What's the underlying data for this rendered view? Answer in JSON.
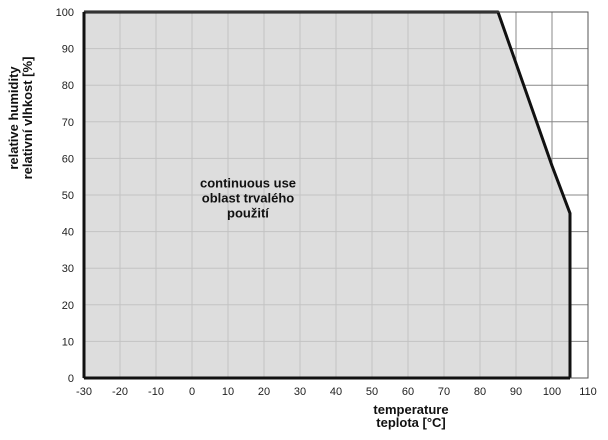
{
  "chart_data": {
    "type": "area",
    "title": "",
    "xlabel": [
      "temperature",
      "teplota [°C]"
    ],
    "ylabel": [
      "relative humidity",
      "relativní vlhkost [%]"
    ],
    "xlim": [
      -30,
      110
    ],
    "ylim": [
      0,
      100
    ],
    "xticks": [
      -30,
      -20,
      -10,
      0,
      10,
      20,
      30,
      40,
      50,
      60,
      70,
      80,
      90,
      100,
      110
    ],
    "yticks": [
      0,
      10,
      20,
      30,
      40,
      50,
      60,
      70,
      80,
      90,
      100
    ],
    "grid": true,
    "series": [
      {
        "x": [
          -30,
          85,
          100,
          105,
          105
        ],
        "y": [
          100,
          100,
          58,
          45,
          0
        ]
      }
    ],
    "annotations": [
      {
        "lines": [
          "continuous use",
          "oblast trvalého",
          "použití"
        ],
        "x": 15,
        "y": 52
      }
    ],
    "colors": {
      "fill": "#d3d3d3",
      "line": "#111111",
      "grid": "#888888"
    }
  }
}
